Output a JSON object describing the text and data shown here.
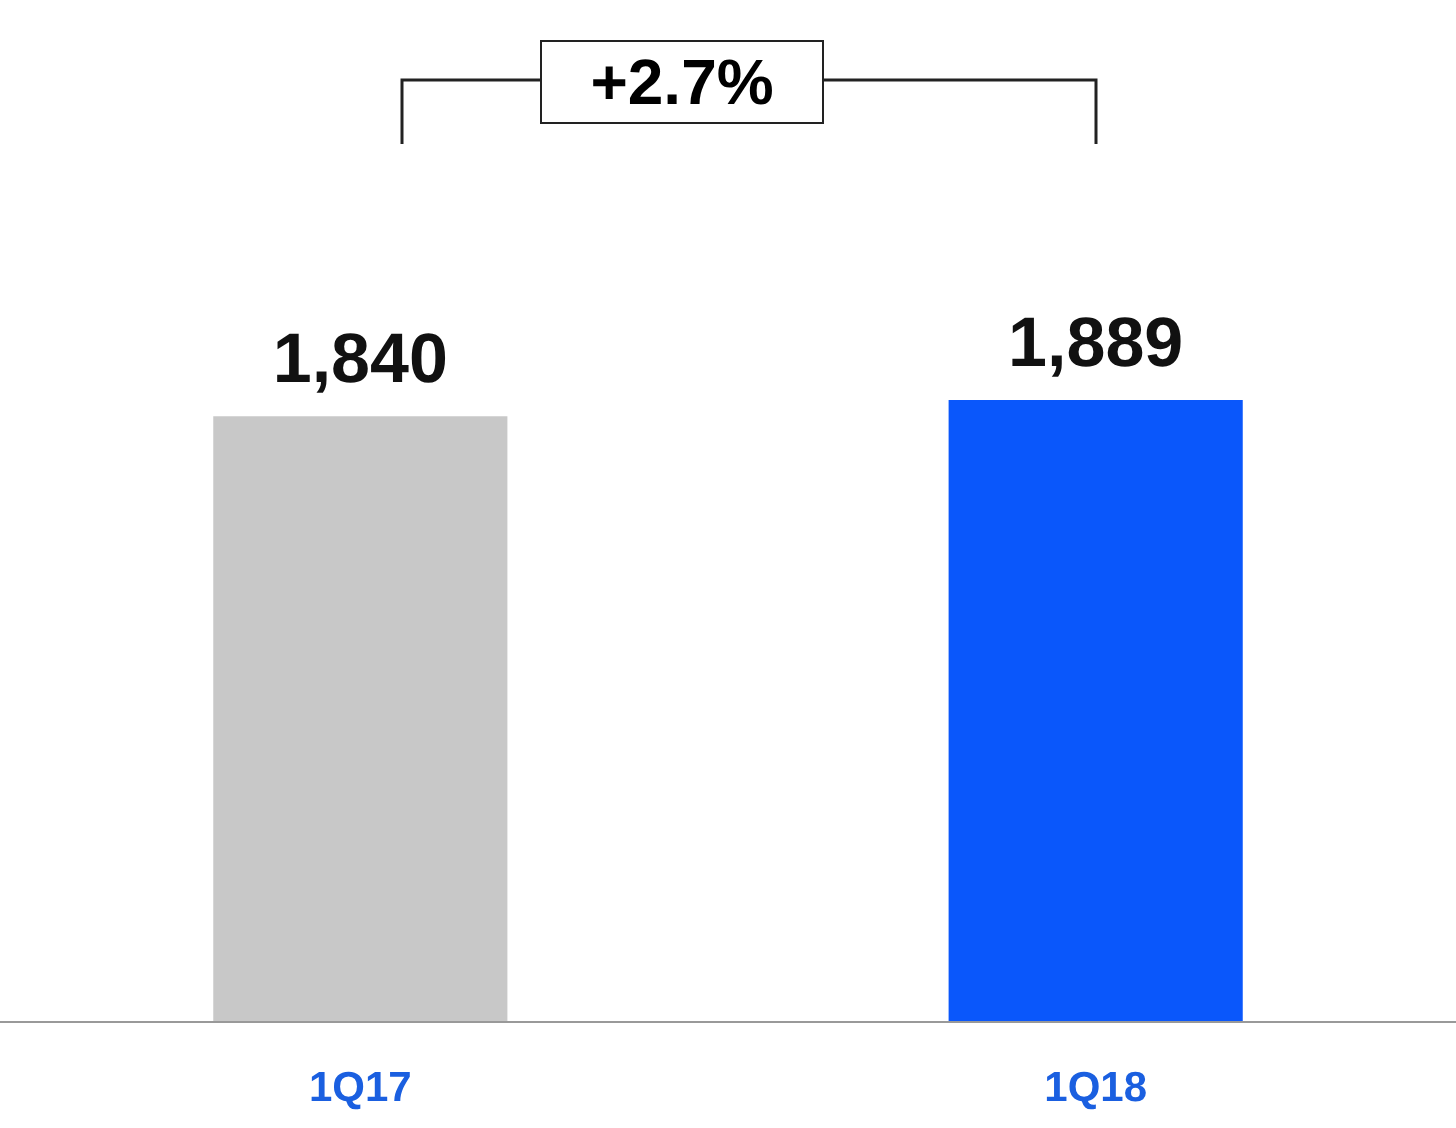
{
  "chart_data": {
    "type": "bar",
    "categories": [
      "1Q17",
      "1Q18"
    ],
    "values": [
      1840,
      1889
    ],
    "colors": [
      "#c8c8c8",
      "#0a57fb"
    ],
    "value_labels": [
      "1,840",
      "1,889"
    ],
    "annotations": [
      "+2.7%"
    ]
  }
}
